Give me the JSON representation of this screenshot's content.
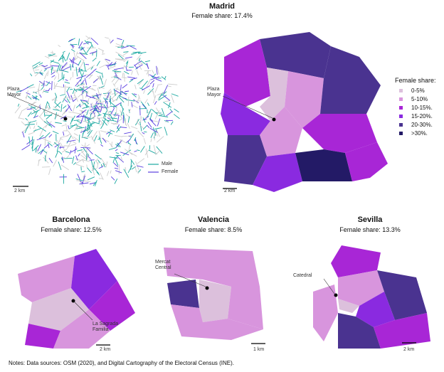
{
  "madrid": {
    "title": "Madrid",
    "subtitle": "Female share: 17.4%",
    "landmark": "Plaza\nMayor",
    "scale": "2 km",
    "line_legend": [
      {
        "label": "Male",
        "color": "#1aa8a0"
      },
      {
        "label": "Female",
        "color": "#5a3fe0"
      }
    ]
  },
  "legend": {
    "title": "Female share:",
    "items": [
      {
        "label": "0-5%",
        "color": "#dcc0dc"
      },
      {
        "label": "5-10%",
        "color": "#d895dd"
      },
      {
        "label": "10-15%.",
        "color": "#a826d6"
      },
      {
        "label": "15-20%.",
        "color": "#8a2ae0"
      },
      {
        "label": "20-30%.",
        "color": "#4a3390"
      },
      {
        "label": ">30%.",
        "color": "#231a66"
      }
    ]
  },
  "barcelona": {
    "title": "Barcelona",
    "subtitle": "Female share: 12.5%",
    "landmark": "La Sagrada\nFamilia",
    "scale": "2 km"
  },
  "valencia": {
    "title": "Valencia",
    "subtitle": "Female share: 8.5%",
    "landmark": "Mercat\nCentral",
    "scale": "1 km"
  },
  "sevilla": {
    "title": "Sevilla",
    "subtitle": "Female share: 13.3%",
    "landmark": "Catedral",
    "scale": "2 km"
  },
  "notes": "Notes: Data sources: OSM (2020), and Digital Cartography of the Electoral Census (INE)."
}
